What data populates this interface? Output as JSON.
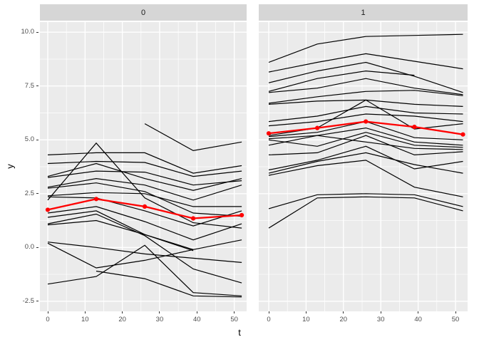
{
  "figure": {
    "x_axis_title": "t",
    "y_axis_title": "y"
  },
  "facets": [
    {
      "label": "0"
    },
    {
      "label": "1"
    }
  ],
  "axes": {
    "x_tick_labels": [
      "0",
      "10",
      "20",
      "30",
      "40",
      "50"
    ],
    "x_tick_values": [
      0,
      10,
      20,
      30,
      40,
      50
    ],
    "x_minor_values": [
      5,
      15,
      25,
      35,
      45
    ],
    "y_tick_labels": [
      "10.0",
      "7.5",
      "5.0",
      "2.5",
      "0.0",
      "-2.5"
    ],
    "y_tick_values": [
      10,
      7.5,
      5,
      2.5,
      0,
      -2.5
    ],
    "y_minor_values": [
      8.75,
      6.25,
      3.75,
      1.25,
      -1.25
    ],
    "x_range": [
      -2.2,
      53.4
    ],
    "y_range": [
      -2.97,
      10.47
    ]
  },
  "colors": {
    "panel_background": "#ebebeb",
    "strip_background": "#d6d6d6",
    "grid_major": "#ffffff",
    "grid_minor": "#ffffff",
    "spaghetti_line": "#000000",
    "mean_line": "#ff0000",
    "tick_text": "#4d4d4d"
  },
  "chart_data": [
    {
      "type": "line",
      "facet": "0",
      "x": [
        0,
        13,
        26,
        39,
        52
      ],
      "xlabel": "t",
      "ylabel": "y",
      "ylim": [
        -2.5,
        10.0
      ],
      "grid": true,
      "lines": [
        [
          null,
          null,
          5.75,
          4.5,
          4.9
        ],
        [
          4.3,
          4.4,
          4.4,
          3.45,
          3.8
        ],
        [
          3.9,
          4.0,
          3.95,
          3.3,
          3.55
        ],
        [
          3.3,
          3.9,
          3.2,
          2.65,
          3.2
        ],
        [
          3.25,
          3.55,
          3.5,
          2.9,
          3.1
        ],
        [
          2.8,
          3.2,
          2.9,
          2.2,
          2.9
        ],
        [
          2.75,
          3.0,
          2.6,
          1.6,
          1.45
        ],
        [
          2.4,
          2.55,
          2.5,
          1.9,
          1.9
        ],
        [
          2.2,
          4.85,
          2.3,
          1.15,
          0.9
        ],
        [
          2.35,
          2.3,
          1.7,
          1.0,
          1.7
        ],
        [
          1.6,
          1.9,
          1.2,
          0.35,
          1.1
        ],
        [
          1.4,
          1.7,
          0.6,
          -0.1,
          null
        ],
        [
          1.1,
          1.55,
          0.55,
          -1.0,
          -1.65
        ],
        [
          1.05,
          1.25,
          0.6,
          -0.15,
          null
        ],
        [
          0.25,
          0.0,
          -0.3,
          -0.5,
          -0.7
        ],
        [
          0.2,
          -0.95,
          -0.6,
          -0.1,
          0.35
        ],
        [
          -1.7,
          -1.35,
          0.1,
          -2.1,
          -2.25
        ],
        [
          null,
          -1.1,
          -1.45,
          -2.25,
          -2.3
        ]
      ],
      "mean_series": {
        "name": "mean",
        "values": [
          1.75,
          2.25,
          1.9,
          1.35,
          1.5
        ]
      }
    },
    {
      "type": "line",
      "facet": "1",
      "x": [
        0,
        13,
        26,
        39,
        52
      ],
      "xlabel": "t",
      "ylabel": "y",
      "ylim": [
        -2.5,
        10.0
      ],
      "grid": true,
      "lines": [
        [
          8.6,
          9.45,
          9.8,
          9.85,
          9.9
        ],
        [
          8.15,
          8.6,
          9.0,
          8.65,
          8.3
        ],
        [
          7.25,
          7.85,
          8.2,
          8.0,
          null
        ],
        [
          7.65,
          8.2,
          8.6,
          7.95,
          7.2
        ],
        [
          7.2,
          7.4,
          7.85,
          7.4,
          7.1
        ],
        [
          6.7,
          7.0,
          7.25,
          7.3,
          7.05
        ],
        [
          6.65,
          6.8,
          6.85,
          6.65,
          6.55
        ],
        [
          5.85,
          6.1,
          6.55,
          6.25,
          6.2
        ],
        [
          5.65,
          5.85,
          6.2,
          6.1,
          5.85
        ],
        [
          5.2,
          5.55,
          6.85,
          5.5,
          5.75
        ],
        [
          5.15,
          5.35,
          5.85,
          5.1,
          5.0
        ],
        [
          5.05,
          5.2,
          5.55,
          4.9,
          4.75
        ],
        [
          5.0,
          4.7,
          5.35,
          4.75,
          4.65
        ],
        [
          4.75,
          5.2,
          4.9,
          4.6,
          4.55
        ],
        [
          4.3,
          4.4,
          5.2,
          4.3,
          4.45
        ],
        [
          3.6,
          4.05,
          4.7,
          3.65,
          4.0
        ],
        [
          3.45,
          4.0,
          4.4,
          3.85,
          3.45
        ],
        [
          3.35,
          3.8,
          4.05,
          2.8,
          2.35
        ],
        [
          1.8,
          2.45,
          2.5,
          2.45,
          1.9
        ],
        [
          0.9,
          2.3,
          2.35,
          2.3,
          1.7
        ]
      ],
      "mean_series": {
        "name": "mean",
        "values": [
          5.3,
          5.55,
          5.85,
          5.6,
          5.25
        ]
      }
    }
  ]
}
